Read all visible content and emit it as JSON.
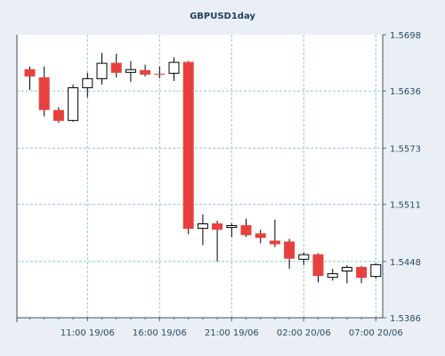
{
  "chart_data": {
    "type": "candlestick",
    "title": "GBPUSD1day",
    "y_ticks": [
      "1.5698",
      "1.5636",
      "1.5573",
      "1.5511",
      "1.5448",
      "1.5386"
    ],
    "ylim": [
      1.5386,
      1.5698
    ],
    "x_ticks": [
      {
        "label": "11:00 19/06",
        "index": 4
      },
      {
        "label": "16:00 19/06",
        "index": 9
      },
      {
        "label": "21:00 19/06",
        "index": 14
      },
      {
        "label": "02:00 20/06",
        "index": 19
      },
      {
        "label": "07:00 20/06",
        "index": 24
      }
    ],
    "grid": true,
    "colors": {
      "up": "#ffffff",
      "down": "#e8403e",
      "outline": "#000000",
      "grid": "#8fc9d3",
      "background": "#ffffff"
    },
    "candles": [
      {
        "open": 1.566,
        "high": 1.5663,
        "low": 1.5637,
        "close": 1.5652
      },
      {
        "open": 1.5651,
        "high": 1.5663,
        "low": 1.5608,
        "close": 1.5615
      },
      {
        "open": 1.5615,
        "high": 1.5618,
        "low": 1.5601,
        "close": 1.5603
      },
      {
        "open": 1.5603,
        "high": 1.5643,
        "low": 1.5602,
        "close": 1.564
      },
      {
        "open": 1.5639,
        "high": 1.5656,
        "low": 1.5629,
        "close": 1.565
      },
      {
        "open": 1.5649,
        "high": 1.5678,
        "low": 1.5643,
        "close": 1.5667
      },
      {
        "open": 1.5667,
        "high": 1.5677,
        "low": 1.5651,
        "close": 1.5656
      },
      {
        "open": 1.5656,
        "high": 1.5669,
        "low": 1.5646,
        "close": 1.566
      },
      {
        "open": 1.5659,
        "high": 1.5665,
        "low": 1.5652,
        "close": 1.5654
      },
      {
        "open": 1.5655,
        "high": 1.5663,
        "low": 1.565,
        "close": 1.5654
      },
      {
        "open": 1.5655,
        "high": 1.5673,
        "low": 1.5647,
        "close": 1.5668
      },
      {
        "open": 1.5668,
        "high": 1.5669,
        "low": 1.5478,
        "close": 1.5484
      },
      {
        "open": 1.5484,
        "high": 1.55,
        "low": 1.5466,
        "close": 1.549
      },
      {
        "open": 1.549,
        "high": 1.5493,
        "low": 1.5448,
        "close": 1.5483
      },
      {
        "open": 1.5485,
        "high": 1.549,
        "low": 1.5475,
        "close": 1.5488
      },
      {
        "open": 1.5488,
        "high": 1.5495,
        "low": 1.5475,
        "close": 1.5477
      },
      {
        "open": 1.5479,
        "high": 1.5483,
        "low": 1.5468,
        "close": 1.5474
      },
      {
        "open": 1.5471,
        "high": 1.5494,
        "low": 1.5464,
        "close": 1.5467
      },
      {
        "open": 1.547,
        "high": 1.5473,
        "low": 1.544,
        "close": 1.5451
      },
      {
        "open": 1.545,
        "high": 1.5458,
        "low": 1.5444,
        "close": 1.5456
      },
      {
        "open": 1.5456,
        "high": 1.5457,
        "low": 1.5425,
        "close": 1.5432
      },
      {
        "open": 1.543,
        "high": 1.544,
        "low": 1.5427,
        "close": 1.5435
      },
      {
        "open": 1.5437,
        "high": 1.5444,
        "low": 1.5424,
        "close": 1.5442
      },
      {
        "open": 1.5442,
        "high": 1.5443,
        "low": 1.5424,
        "close": 1.543
      },
      {
        "open": 1.5431,
        "high": 1.5446,
        "low": 1.5429,
        "close": 1.5445
      }
    ]
  }
}
